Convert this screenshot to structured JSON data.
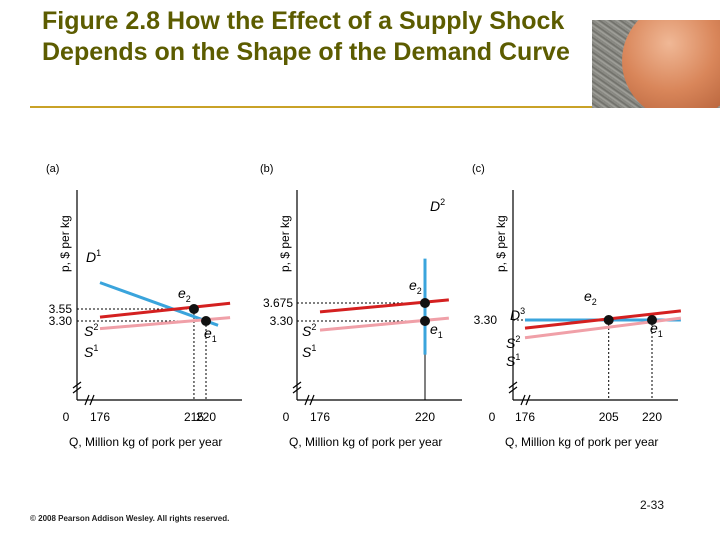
{
  "title": "Figure 2.8 How the Effect of a Supply Shock Depends on the Shape of the Demand Curve",
  "copyright": "© 2008 Pearson Addison Wesley. All rights reserved.",
  "slide_number": "2-33",
  "colors": {
    "title": "#5c5c00",
    "rule": "#c9a227",
    "supply_new": "#d42020",
    "supply_old": "#f0a0a8",
    "demand": "#3aa4dc"
  },
  "chart_data": [
    {
      "type": "line",
      "panel": "(a)",
      "xlabel": "Q, Million kg of pork per year",
      "ylabel": "p, $ per kg",
      "x_ticks": [
        "0",
        "176",
        "215",
        "220"
      ],
      "y_ticks": [
        "3.55",
        "3.30"
      ],
      "curves": [
        {
          "name": "D",
          "sup": "1",
          "kind": "demand",
          "points": [
            [
              176,
              4.1
            ],
            [
              225,
              3.21
            ]
          ]
        },
        {
          "name": "S",
          "sup": "2",
          "kind": "supply_new",
          "points": [
            [
              176,
              3.38
            ],
            [
              230,
              3.67
            ]
          ]
        },
        {
          "name": "S",
          "sup": "1",
          "kind": "supply_old",
          "points": [
            [
              176,
              3.14
            ],
            [
              230,
              3.37
            ]
          ]
        }
      ],
      "equilibria": [
        {
          "name": "e",
          "sub": "2",
          "q": 215,
          "p": 3.55
        },
        {
          "name": "e",
          "sub": "1",
          "q": 220,
          "p": 3.3
        }
      ]
    },
    {
      "type": "line",
      "panel": "(b)",
      "xlabel": "Q, Million kg of pork per year",
      "ylabel": "p, $ per kg",
      "x_ticks": [
        "0",
        "176",
        "220"
      ],
      "y_ticks": [
        "3.675",
        "3.30"
      ],
      "curves": [
        {
          "name": "D",
          "sup": "2",
          "kind": "demand",
          "points": [
            [
              220,
              4.6
            ],
            [
              220,
              2.6
            ]
          ]
        },
        {
          "name": "S",
          "sup": "2",
          "kind": "supply_new",
          "points": [
            [
              176,
              3.49
            ],
            [
              230,
              3.74
            ]
          ]
        },
        {
          "name": "S",
          "sup": "1",
          "kind": "supply_old",
          "points": [
            [
              176,
              3.11
            ],
            [
              230,
              3.36
            ]
          ]
        }
      ],
      "equilibria": [
        {
          "name": "e",
          "sub": "2",
          "q": 220,
          "p": 3.675
        },
        {
          "name": "e",
          "sub": "1",
          "q": 220,
          "p": 3.3
        }
      ]
    },
    {
      "type": "line",
      "panel": "(c)",
      "xlabel": "Q, Million kg of pork per year",
      "ylabel": "p, $ per kg",
      "x_ticks": [
        "0",
        "176",
        "205",
        "220"
      ],
      "y_ticks": [
        "3.30"
      ],
      "curves": [
        {
          "name": "D",
          "sup": "3",
          "kind": "demand",
          "points": [
            [
              176,
              3.3
            ],
            [
              230,
              3.3
            ]
          ]
        },
        {
          "name": "S",
          "sup": "2",
          "kind": "supply_new",
          "points": [
            [
              176,
              3.13
            ],
            [
              230,
              3.49
            ]
          ]
        },
        {
          "name": "S",
          "sup": "1",
          "kind": "supply_old",
          "points": [
            [
              176,
              2.93
            ],
            [
              230,
              3.34
            ]
          ]
        }
      ],
      "equilibria": [
        {
          "name": "e",
          "sub": "2",
          "q": 205,
          "p": 3.3
        },
        {
          "name": "e",
          "sub": "1",
          "q": 220,
          "p": 3.3
        }
      ]
    }
  ]
}
